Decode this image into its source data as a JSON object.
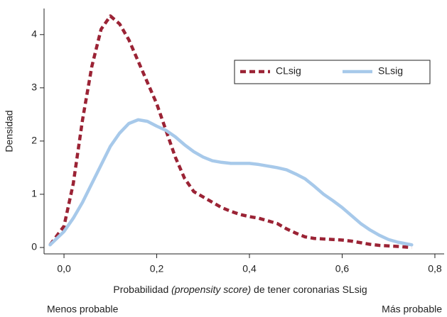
{
  "chart_data": {
    "type": "line",
    "y_label": "Densidad",
    "x_label": [
      "Probabilidad ",
      "(propensity score)",
      " de tener coronarias SLsig"
    ],
    "annotations": [
      "Menos probable",
      "Más probable"
    ],
    "x": [
      -0.03,
      0,
      0.02,
      0.04,
      0.06,
      0.08,
      0.1,
      0.12,
      0.14,
      0.16,
      0.18,
      0.2,
      0.22,
      0.24,
      0.26,
      0.28,
      0.3,
      0.32,
      0.34,
      0.36,
      0.38,
      0.4,
      0.42,
      0.44,
      0.46,
      0.48,
      0.5,
      0.52,
      0.54,
      0.56,
      0.58,
      0.6,
      0.62,
      0.64,
      0.66,
      0.68,
      0.7,
      0.72,
      0.75
    ],
    "series": [
      {
        "name": "CLsig",
        "color": "#9b2335",
        "dash": true,
        "values": [
          0.05,
          0.4,
          1.2,
          2.4,
          3.4,
          4.1,
          4.35,
          4.2,
          3.9,
          3.5,
          3.1,
          2.7,
          2.2,
          1.7,
          1.3,
          1.05,
          0.95,
          0.85,
          0.75,
          0.68,
          0.62,
          0.58,
          0.55,
          0.5,
          0.45,
          0.35,
          0.27,
          0.2,
          0.17,
          0.16,
          0.15,
          0.14,
          0.12,
          0.09,
          0.06,
          0.04,
          0.03,
          0.02,
          0.0
        ]
      },
      {
        "name": "SLsig",
        "color": "#a7c9ea",
        "dash": false,
        "values": [
          0.05,
          0.3,
          0.55,
          0.85,
          1.2,
          1.55,
          1.9,
          2.15,
          2.33,
          2.4,
          2.37,
          2.28,
          2.2,
          2.08,
          1.93,
          1.8,
          1.7,
          1.63,
          1.6,
          1.58,
          1.58,
          1.58,
          1.56,
          1.53,
          1.5,
          1.46,
          1.38,
          1.29,
          1.15,
          1.0,
          0.88,
          0.75,
          0.6,
          0.45,
          0.33,
          0.23,
          0.15,
          0.1,
          0.05
        ]
      }
    ],
    "xlim": [
      -0.043,
      0.82
    ],
    "xticks": [
      {
        "value": 0,
        "label": "0,0"
      },
      {
        "value": 0.2,
        "label": "0,2"
      },
      {
        "value": 0.4,
        "label": "0,4"
      },
      {
        "value": 0.6,
        "label": "0,6"
      },
      {
        "value": 0.8,
        "label": "0,8"
      }
    ],
    "ylim": [
      -0.12,
      4.49
    ],
    "yticks": [
      0,
      1,
      2,
      3,
      4
    ],
    "legend": "top-right"
  }
}
